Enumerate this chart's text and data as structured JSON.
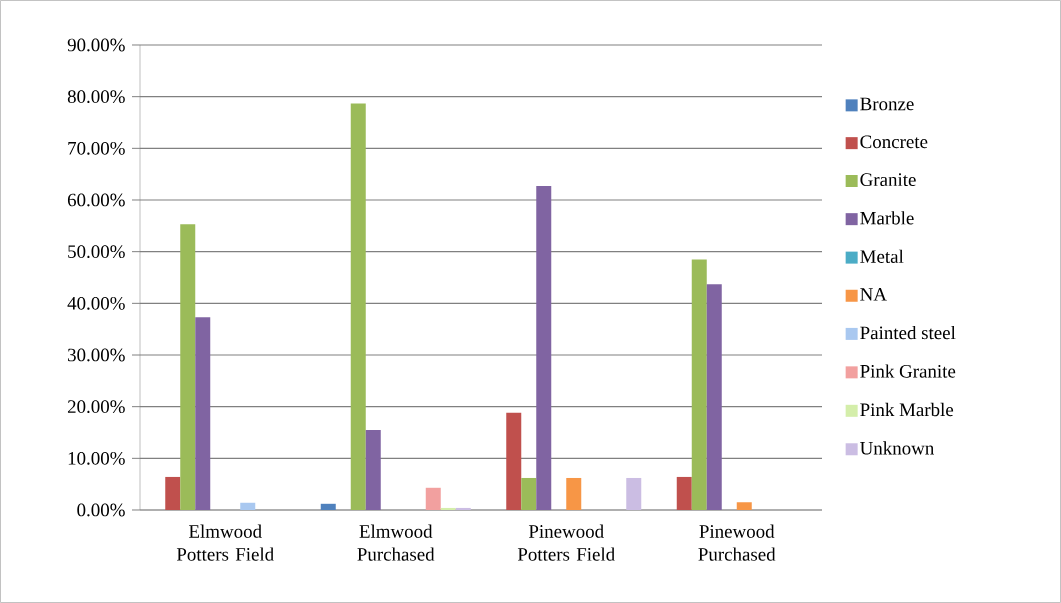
{
  "chart_data": {
    "type": "bar",
    "categories": [
      "Elmwood Potters Field",
      "Elmwood Purchased",
      "Pinewood Potters Field",
      "Pinewood Purchased"
    ],
    "series": [
      {
        "name": "Bronze",
        "color": "#4f81bd",
        "values": [
          0,
          1.2,
          0,
          0
        ]
      },
      {
        "name": "Concrete",
        "color": "#c0504d",
        "values": [
          6.4,
          0,
          18.8,
          6.4
        ]
      },
      {
        "name": "Granite",
        "color": "#9bbb59",
        "values": [
          55.3,
          78.7,
          6.2,
          48.5
        ]
      },
      {
        "name": "Marble",
        "color": "#8064a2",
        "values": [
          37.3,
          15.5,
          62.7,
          43.7
        ]
      },
      {
        "name": "Metal",
        "color": "#4bacc6",
        "values": [
          0,
          0,
          0,
          0
        ]
      },
      {
        "name": "NA",
        "color": "#f79646",
        "values": [
          0,
          0,
          6.2,
          1.5
        ]
      },
      {
        "name": "Painted steel",
        "color": "#a9c8f0",
        "values": [
          1.4,
          0,
          0,
          0
        ]
      },
      {
        "name": "Pink Granite",
        "color": "#f2a09f",
        "values": [
          0,
          4.3,
          0,
          0
        ]
      },
      {
        "name": "Pink Marble",
        "color": "#d4eeaa",
        "values": [
          0,
          0.4,
          0,
          0
        ]
      },
      {
        "name": "Unknown",
        "color": "#cbbde3",
        "values": [
          0,
          0.4,
          6.2,
          0
        ]
      }
    ],
    "ylim": [
      0,
      90
    ],
    "yticks": [
      {
        "value": 0,
        "label": "0.00%"
      },
      {
        "value": 10,
        "label": "10.00%"
      },
      {
        "value": 20,
        "label": "20.00%"
      },
      {
        "value": 30,
        "label": "30.00%"
      },
      {
        "value": 40,
        "label": "40.00%"
      },
      {
        "value": 50,
        "label": "50.00%"
      },
      {
        "value": 60,
        "label": "60.00%"
      },
      {
        "value": 70,
        "label": "70.00%"
      },
      {
        "value": 80,
        "label": "80.00%"
      },
      {
        "value": 90,
        "label": "90.00%"
      }
    ],
    "grid": "y",
    "legend": "right"
  }
}
